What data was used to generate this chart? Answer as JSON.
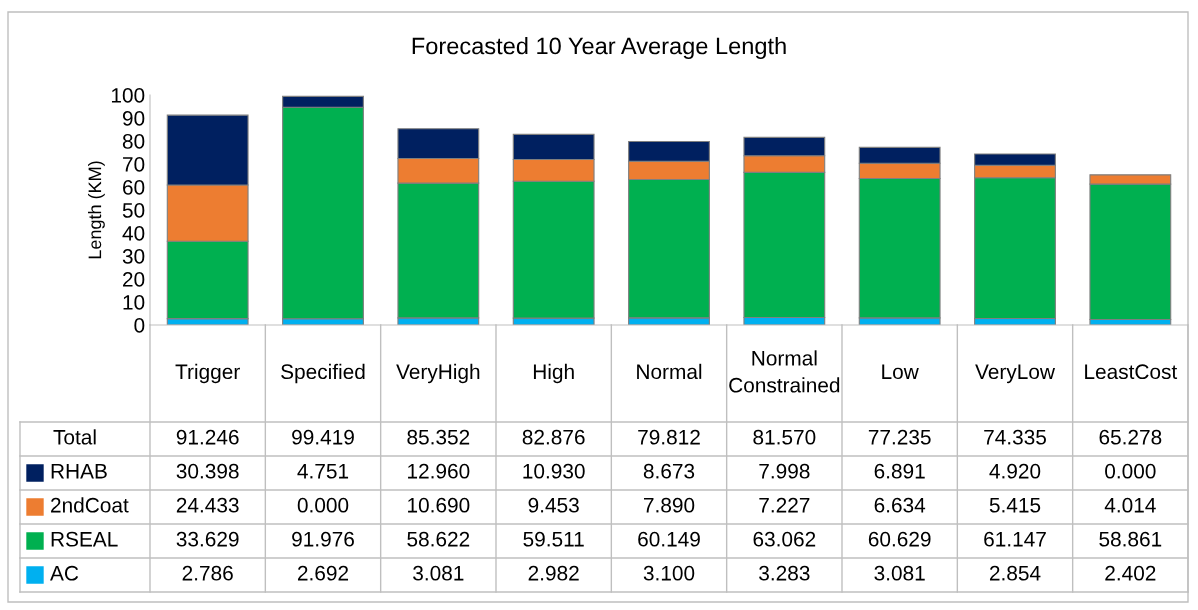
{
  "chart_data": {
    "type": "bar",
    "title": "Forecasted 10 Year Average Length",
    "ylabel": "Length (KM)",
    "stacked": true,
    "legend": "bottom",
    "categories": [
      "Trigger",
      "Specified",
      "VeryHigh",
      "High",
      "Normal",
      "Normal Constrained",
      "Low",
      "VeryLow",
      "LeastCost"
    ],
    "ylim": [
      0,
      100
    ],
    "yticks": [
      0,
      10,
      20,
      30,
      40,
      50,
      60,
      70,
      80,
      90,
      100
    ],
    "grid": false,
    "series": [
      {
        "name": "AC",
        "color": "#00b0f0",
        "values": [
          2.786,
          2.692,
          3.081,
          2.982,
          3.1,
          3.283,
          3.081,
          2.854,
          2.402
        ],
        "value_labels": [
          "2.786",
          "2.692",
          "3.081",
          "2.982",
          "3.100",
          "3.283",
          "3.081",
          "2.854",
          "2.402"
        ]
      },
      {
        "name": "RSEAL",
        "color": "#00b050",
        "values": [
          33.629,
          91.976,
          58.622,
          59.511,
          60.149,
          63.062,
          60.629,
          61.147,
          58.861
        ],
        "value_labels": [
          "33.629",
          "91.976",
          "58.622",
          "59.511",
          "60.149",
          "63.062",
          "60.629",
          "61.147",
          "58.861"
        ]
      },
      {
        "name": "2ndCoat",
        "color": "#ed7d31",
        "values": [
          24.433,
          0.0,
          10.69,
          9.453,
          7.89,
          7.227,
          6.634,
          5.415,
          4.014
        ],
        "value_labels": [
          "24.433",
          "0.000",
          "10.690",
          "9.453",
          "7.890",
          "7.227",
          "6.634",
          "5.415",
          "4.014"
        ]
      },
      {
        "name": "RHAB",
        "color": "#002060",
        "values": [
          30.398,
          4.751,
          12.96,
          10.93,
          8.673,
          7.998,
          6.891,
          4.92,
          0.0
        ],
        "value_labels": [
          "30.398",
          "4.751",
          "12.960",
          "10.930",
          "8.673",
          "7.998",
          "6.891",
          "4.920",
          "0.000"
        ]
      }
    ],
    "annotations": [
      "Total",
      "91.246",
      "99.419",
      "85.352",
      "82.876",
      "79.812",
      "81.570",
      "77.235",
      "74.335",
      "65.278"
    ]
  }
}
